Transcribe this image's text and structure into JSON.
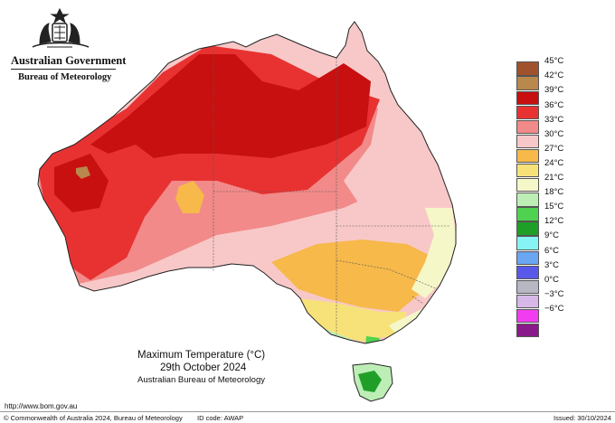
{
  "header": {
    "government": "Australian Government",
    "bureau": "Bureau of Meteorology",
    "crest_icon": "commonwealth-coat-of-arms-icon"
  },
  "legend": {
    "items": [
      {
        "label": "45°C",
        "color": "#a0522d"
      },
      {
        "label": "42°C",
        "color": "#b8884c"
      },
      {
        "label": "39°C",
        "color": "#c81010"
      },
      {
        "label": "36°C",
        "color": "#e83232"
      },
      {
        "label": "33°C",
        "color": "#f28a8a"
      },
      {
        "label": "30°C",
        "color": "#f8c8c8"
      },
      {
        "label": "27°C",
        "color": "#f6b94a"
      },
      {
        "label": "24°C",
        "color": "#f7e27a"
      },
      {
        "label": "21°C",
        "color": "#f5f7c8"
      },
      {
        "label": "18°C",
        "color": "#bdeeb6"
      },
      {
        "label": "15°C",
        "color": "#4fd24f"
      },
      {
        "label": "12°C",
        "color": "#209f28"
      },
      {
        "label": "9°C",
        "color": "#86f4f4"
      },
      {
        "label": "6°C",
        "color": "#6aa6f2"
      },
      {
        "label": "3°C",
        "color": "#5a58e8"
      },
      {
        "label": "0°C",
        "color": "#b7b7c4"
      },
      {
        "label": "−3°C",
        "color": "#d8b8e8"
      },
      {
        "label": "−6°C",
        "color": "#f23cf2"
      },
      {
        "label": "",
        "color": "#8a1a8a"
      }
    ]
  },
  "map": {
    "title": "Maximum Temperature (°C)",
    "date": "29th October 2024",
    "source": "Australian Bureau of Meteorology"
  },
  "footer": {
    "url": "http://www.bom.gov.au",
    "copyright": "© Commonwealth of Australia 2024, Bureau of Meteorology",
    "id_code": "ID code: AWAP",
    "issued": "Issued: 30/10/2024"
  }
}
